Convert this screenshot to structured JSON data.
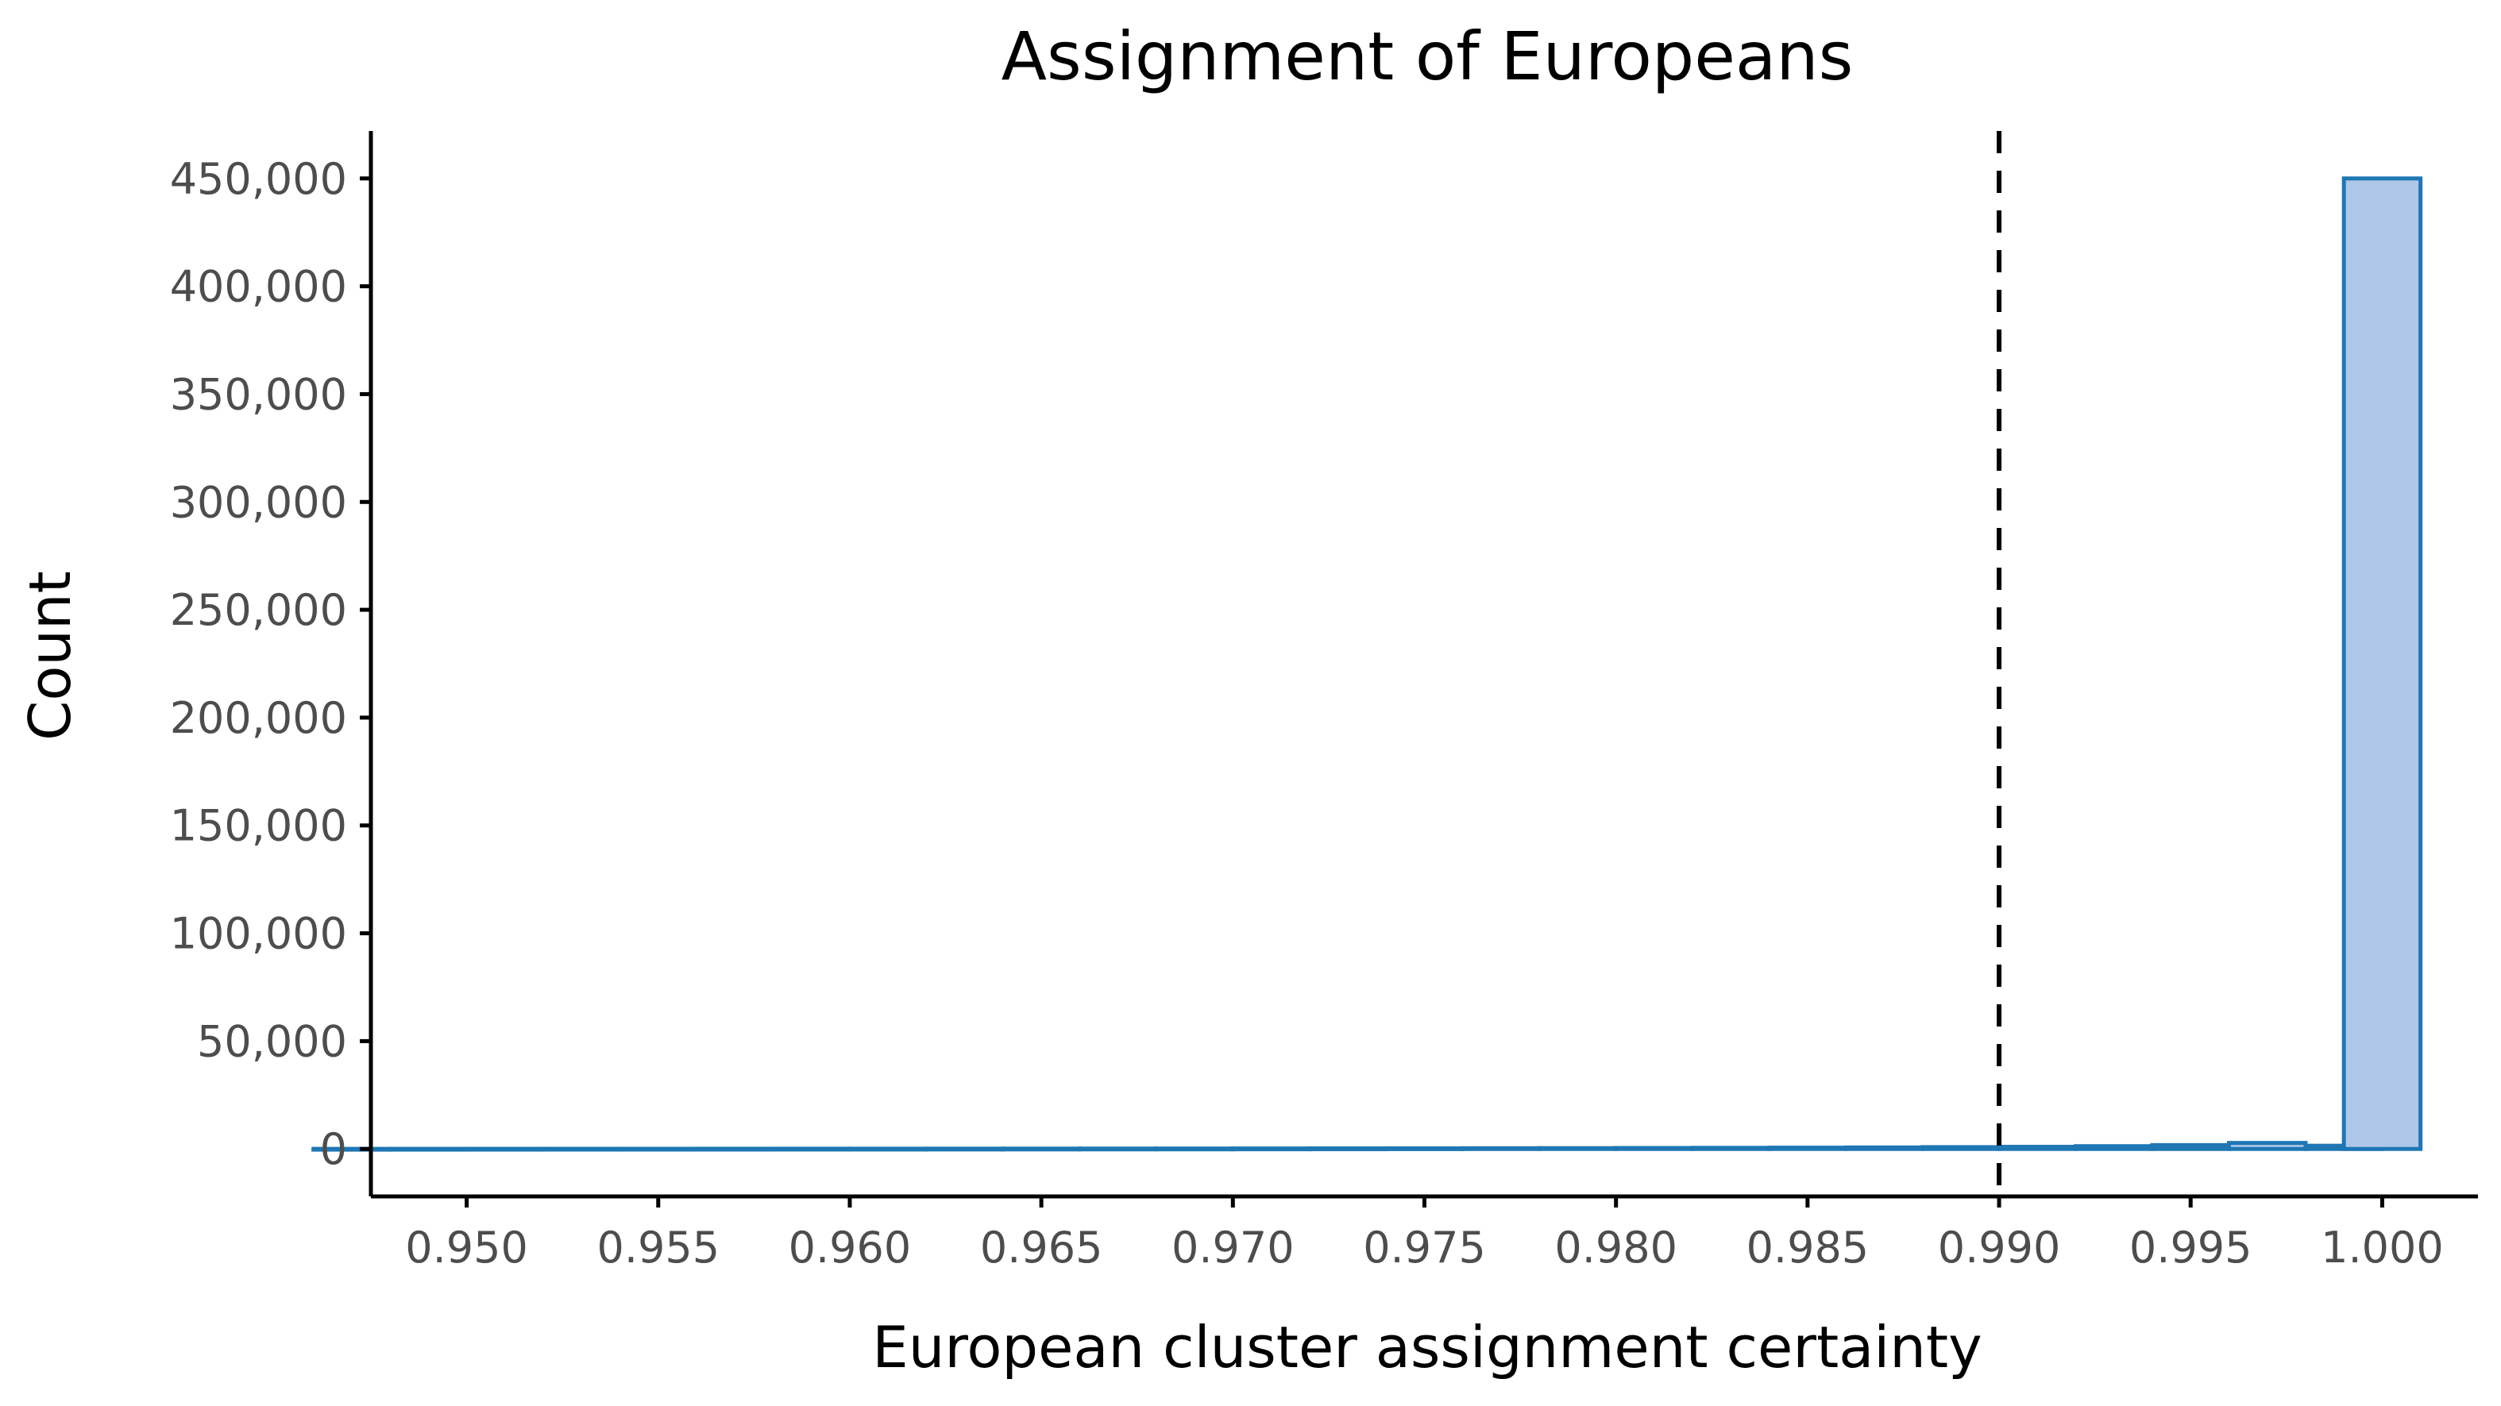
{
  "chart_data": {
    "type": "bar",
    "title": "Assignment of Europeans",
    "xlabel": "European cluster assignment certainty",
    "ylabel": "Count",
    "xlim": [
      0.9475,
      1.0025
    ],
    "ylim": [
      -22000,
      472000
    ],
    "x_ticks": [
      0.95,
      0.955,
      0.96,
      0.965,
      0.97,
      0.975,
      0.98,
      0.985,
      0.99,
      0.995,
      1.0
    ],
    "x_tick_labels": [
      "0.950",
      "0.955",
      "0.960",
      "0.965",
      "0.970",
      "0.975",
      "0.980",
      "0.985",
      "0.990",
      "0.995",
      "1.000"
    ],
    "y_ticks": [
      0,
      50000,
      100000,
      150000,
      200000,
      250000,
      300000,
      350000,
      400000,
      450000
    ],
    "y_tick_labels": [
      "0",
      "50,000",
      "100,000",
      "150,000",
      "200,000",
      "250,000",
      "300,000",
      "350,000",
      "400,000",
      "450,000"
    ],
    "bin_width": 0.002,
    "series": [
      {
        "x": [
          0.947,
          0.949,
          0.951,
          0.953,
          0.955,
          0.957,
          0.959,
          0.961,
          0.963,
          0.965,
          0.967,
          0.969,
          0.971,
          0.973,
          0.975,
          0.977,
          0.979,
          0.981,
          0.983,
          0.985,
          0.987,
          0.989,
          0.991,
          0.993,
          0.995,
          0.997,
          0.999
        ],
        "values": [
          50,
          60,
          70,
          80,
          90,
          100,
          110,
          120,
          140,
          160,
          180,
          200,
          230,
          260,
          300,
          340,
          390,
          450,
          520,
          600,
          700,
          850,
          1000,
          1300,
          1800,
          2800,
          1500
        ]
      },
      {
        "x": [
          1.0
        ],
        "values": [
          450000
        ]
      }
    ],
    "reference_line": {
      "x": 0.99,
      "style": "dashed",
      "color": "#000000"
    },
    "colors": {
      "bar_fill": "#aec7e8",
      "bar_outline": "#1f77b4",
      "axis": "#000000",
      "tick_text": "#4d4d4d"
    },
    "grid": false,
    "legend": "none"
  }
}
